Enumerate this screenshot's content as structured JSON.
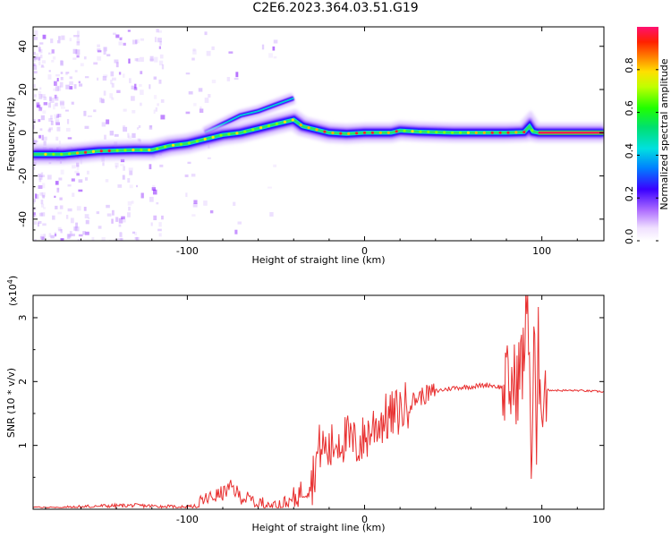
{
  "title": "C2E6.2023.364.03.51.G19",
  "chart_data": [
    {
      "type": "heatmap",
      "xlabel": "Height of straight line (km)",
      "ylabel": "Frequency (Hz)",
      "xlim": [
        -187,
        135
      ],
      "ylim": [
        -50,
        49
      ],
      "xticks": [
        -100,
        0,
        100
      ],
      "yticks": [
        -40,
        -20,
        0,
        20,
        40
      ],
      "colorbar": {
        "label": "Normalized spectral amplitude",
        "range": [
          0,
          1
        ],
        "ticks": [
          "0.0",
          "0.2",
          "0.4",
          "0.6",
          "0.8"
        ],
        "tick_values": [
          0,
          0.2,
          0.4,
          0.6,
          0.8
        ]
      },
      "ridge": {
        "x": [
          -187,
          -170,
          -150,
          -130,
          -120,
          -110,
          -100,
          -90,
          -80,
          -70,
          -60,
          -50,
          -45,
          -40,
          -35,
          -30,
          -20,
          -10,
          0,
          10,
          15,
          20,
          30,
          50,
          70,
          80,
          90,
          93,
          95,
          98,
          100,
          110,
          120,
          135
        ],
        "frequency_hz": [
          -10,
          -10,
          -8.5,
          -8,
          -8,
          -6,
          -5,
          -3,
          -1,
          0,
          2,
          4,
          5,
          6,
          3,
          2,
          0,
          -0.5,
          0,
          0,
          0,
          1,
          0.5,
          0,
          0,
          0,
          0.3,
          3,
          0.5,
          0,
          0,
          0,
          0,
          0
        ]
      },
      "secondary_branch": {
        "x": [
          -90,
          -80,
          -70,
          -60,
          -50,
          -40
        ],
        "frequency_hz": [
          0,
          4,
          8,
          10,
          13,
          16
        ]
      },
      "grid": false
    },
    {
      "type": "line",
      "series": [
        {
          "color": "#e83030",
          "x": [
            -187,
            -170,
            -150,
            -130,
            -110,
            -100,
            -95,
            -90,
            -80,
            -75,
            -70,
            -60,
            -50,
            -40,
            -35,
            -30,
            -27,
            -25,
            -20,
            -15,
            -10,
            -5,
            0,
            5,
            10,
            15,
            20,
            25,
            30,
            40,
            50,
            60,
            70,
            75,
            80,
            85,
            88,
            90,
            92,
            93,
            94,
            96,
            97,
            98,
            99,
            100,
            101,
            102,
            110,
            120,
            135
          ],
          "y": [
            0.01,
            0.02,
            0.05,
            0.06,
            0.04,
            0.03,
            0.05,
            0.15,
            0.25,
            0.35,
            0.2,
            0.1,
            0.05,
            0.15,
            0.3,
            0.4,
            0.8,
            1.0,
            0.9,
            1.1,
            1.1,
            1.0,
            1.1,
            1.3,
            1.4,
            1.45,
            1.55,
            1.65,
            1.75,
            1.85,
            1.9,
            1.92,
            1.95,
            1.92,
            1.9,
            1.95,
            2.2,
            2.4,
            3.3,
            2.6,
            0.5,
            2.9,
            0.3,
            2.5,
            2.0,
            1.9,
            1.88,
            1.87,
            1.86,
            1.86,
            1.84
          ]
        }
      ],
      "xlabel": "Height of straight line (km)",
      "ylabel": "SNR (10 * v/v)",
      "yscale_note": "(x10",
      "yscale_exp": "4",
      "xlim": [
        -187,
        135
      ],
      "ylim": [
        0,
        3.35
      ],
      "xticks": [
        -100,
        0,
        100
      ],
      "yticks": [
        1,
        2,
        3
      ],
      "grid": false
    }
  ]
}
